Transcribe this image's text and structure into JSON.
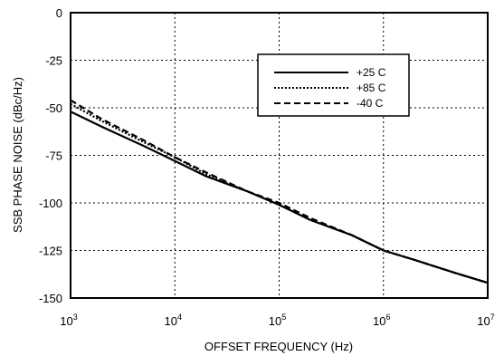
{
  "chart_data": {
    "type": "line",
    "title": "",
    "xlabel": "OFFSET FREQUENCY (Hz)",
    "ylabel": "SSB PHASE NOISE (dBc/Hz)",
    "x_scale": "log",
    "xlim": [
      1000,
      10000000
    ],
    "ylim": [
      -150,
      0
    ],
    "x_ticks": [
      {
        "value": 1000,
        "base": "10",
        "exp": "3"
      },
      {
        "value": 10000,
        "base": "10",
        "exp": "4"
      },
      {
        "value": 100000,
        "base": "10",
        "exp": "5"
      },
      {
        "value": 1000000,
        "base": "10",
        "exp": "6"
      },
      {
        "value": 10000000,
        "base": "10",
        "exp": "7"
      }
    ],
    "y_ticks": [
      0,
      -25,
      -50,
      -75,
      -100,
      -125,
      -150
    ],
    "grid": "dotted",
    "legend_position": "top-right",
    "series": [
      {
        "name": "+25 C",
        "style": "solid",
        "x": [
          1000,
          2000,
          5000,
          10000,
          20000,
          50000,
          100000,
          200000,
          500000,
          1000000,
          2000000,
          5000000,
          10000000
        ],
        "y": [
          -52,
          -60,
          -70,
          -78,
          -86,
          -94,
          -101,
          -109,
          -117,
          -125,
          -130,
          -137,
          -142
        ]
      },
      {
        "name": "+85 C",
        "style": "dotted",
        "x": [
          1000,
          2000,
          5000,
          10000,
          20000,
          50000,
          100000,
          200000,
          500000,
          1000000,
          2000000,
          5000000,
          10000000
        ],
        "y": [
          -48,
          -57,
          -68,
          -76,
          -85,
          -94,
          -101,
          -109,
          -117,
          -125,
          -130,
          -137,
          -142
        ]
      },
      {
        "name": "-40 C",
        "style": "dashed",
        "x": [
          1000,
          2000,
          5000,
          10000,
          20000,
          50000,
          100000,
          200000,
          500000,
          1000000,
          2000000,
          5000000,
          10000000
        ],
        "y": [
          -46,
          -56,
          -67,
          -76,
          -84,
          -94,
          -100,
          -108,
          -117,
          -125,
          -130,
          -137,
          -142
        ]
      }
    ]
  }
}
